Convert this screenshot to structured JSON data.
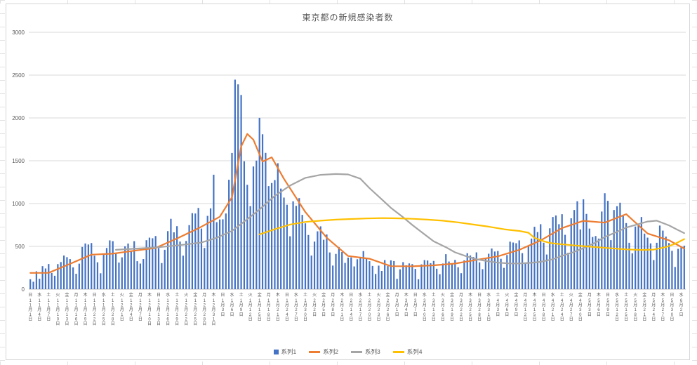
{
  "title": "東京都の新規感染者数",
  "colors": {
    "series1": "#4472C4",
    "series2": "#ED7D31",
    "series3": "#A5A5A5",
    "series4": "#FFC000",
    "grid": "#D9D9D9",
    "axis": "#BFBFBF",
    "text": "#595959"
  },
  "legend": [
    {
      "label": "系列1",
      "type": "bar"
    },
    {
      "label": "系列2",
      "type": "line"
    },
    {
      "label": "系列3",
      "type": "line"
    },
    {
      "label": "系列4",
      "type": "line"
    }
  ],
  "chart_data": {
    "type": "bar",
    "subtype": "combo bar + 3 lines",
    "title": "東京都の新規感染者数",
    "ylim": [
      0,
      3000
    ],
    "y_step": 500,
    "x_start": "11月1日",
    "x_end": "6月3日",
    "x_tick_every_days": 3,
    "x_tick_labels": [
      {
        "w": "日",
        "t": "11月1日"
      },
      {
        "w": "水",
        "t": "11月4日"
      },
      {
        "w": "土",
        "t": "11月7日"
      },
      {
        "w": "火",
        "t": "11月10日"
      },
      {
        "w": "金",
        "t": "11月13日"
      },
      {
        "w": "月",
        "t": "11月16日"
      },
      {
        "w": "木",
        "t": "11月19日"
      },
      {
        "w": "日",
        "t": "11月22日"
      },
      {
        "w": "水",
        "t": "11月25日"
      },
      {
        "w": "土",
        "t": "11月28日"
      },
      {
        "w": "火",
        "t": "12月1日"
      },
      {
        "w": "金",
        "t": "12月4日"
      },
      {
        "w": "月",
        "t": "12月7日"
      },
      {
        "w": "木",
        "t": "12月10日"
      },
      {
        "w": "日",
        "t": "12月13日"
      },
      {
        "w": "水",
        "t": "12月16日"
      },
      {
        "w": "土",
        "t": "12月19日"
      },
      {
        "w": "火",
        "t": "12月22日"
      },
      {
        "w": "金",
        "t": "12月25日"
      },
      {
        "w": "月",
        "t": "12月28日"
      },
      {
        "w": "木",
        "t": "12月31日"
      },
      {
        "w": "日",
        "t": "1月3日"
      },
      {
        "w": "水",
        "t": "1月6日"
      },
      {
        "w": "土",
        "t": "1月9日"
      },
      {
        "w": "火",
        "t": "1月12日"
      },
      {
        "w": "金",
        "t": "1月15日"
      },
      {
        "w": "月",
        "t": "1月18日"
      },
      {
        "w": "木",
        "t": "1月21日"
      },
      {
        "w": "日",
        "t": "1月24日"
      },
      {
        "w": "水",
        "t": "1月27日"
      },
      {
        "w": "土",
        "t": "1月30日"
      },
      {
        "w": "火",
        "t": "2月2日"
      },
      {
        "w": "金",
        "t": "2月5日"
      },
      {
        "w": "月",
        "t": "2月8日"
      },
      {
        "w": "木",
        "t": "2月11日"
      },
      {
        "w": "日",
        "t": "2月14日"
      },
      {
        "w": "水",
        "t": "2月17日"
      },
      {
        "w": "土",
        "t": "2月20日"
      },
      {
        "w": "火",
        "t": "2月23日"
      },
      {
        "w": "金",
        "t": "2月26日"
      },
      {
        "w": "月",
        "t": "3月1日"
      },
      {
        "w": "木",
        "t": "3月4日"
      },
      {
        "w": "日",
        "t": "3月7日"
      },
      {
        "w": "水",
        "t": "3月10日"
      },
      {
        "w": "土",
        "t": "3月13日"
      },
      {
        "w": "火",
        "t": "3月16日"
      },
      {
        "w": "金",
        "t": "3月19日"
      },
      {
        "w": "月",
        "t": "3月22日"
      },
      {
        "w": "木",
        "t": "3月25日"
      },
      {
        "w": "日",
        "t": "3月28日"
      },
      {
        "w": "水",
        "t": "3月31日"
      },
      {
        "w": "土",
        "t": "4月3日"
      },
      {
        "w": "火",
        "t": "4月6日"
      },
      {
        "w": "金",
        "t": "4月9日"
      },
      {
        "w": "月",
        "t": "4月12日"
      },
      {
        "w": "木",
        "t": "4月15日"
      },
      {
        "w": "日",
        "t": "4月18日"
      },
      {
        "w": "水",
        "t": "4月21日"
      },
      {
        "w": "土",
        "t": "4月24日"
      },
      {
        "w": "火",
        "t": "4月27日"
      },
      {
        "w": "金",
        "t": "4月30日"
      },
      {
        "w": "月",
        "t": "5月3日"
      },
      {
        "w": "木",
        "t": "5月6日"
      },
      {
        "w": "日",
        "t": "5月9日"
      },
      {
        "w": "水",
        "t": "5月12日"
      },
      {
        "w": "土",
        "t": "5月15日"
      },
      {
        "w": "火",
        "t": "5月18日"
      },
      {
        "w": "金",
        "t": "5月21日"
      },
      {
        "w": "月",
        "t": "5月24日"
      },
      {
        "w": "木",
        "t": "5月27日"
      },
      {
        "w": "日",
        "t": "5月30日"
      },
      {
        "w": "水",
        "t": "6月2日"
      }
    ],
    "series": [
      {
        "name": "系列1",
        "type": "bar",
        "color": "#4472C4",
        "values": [
          116,
          87,
          209,
          122,
          269,
          242,
          294,
          189,
          157,
          293,
          317,
          393,
          374,
          352,
          255,
          180,
          298,
          493,
          534,
          522,
          539,
          391,
          314,
          186,
          401,
          481,
          570,
          561,
          418,
          311,
          372,
          500,
          533,
          449,
          561,
          327,
          299,
          352,
          572,
          602,
          595,
          621,
          480,
          305,
          460,
          678,
          822,
          664,
          736,
          556,
          392,
          563,
          748,
          888,
          884,
          949,
          708,
          481,
          856,
          944,
          1337,
          783,
          814,
          816,
          884,
          1278,
          1591,
          2447,
          2392,
          2268,
          1494,
          1219,
          970,
          1433,
          1502,
          2001,
          1809,
          1592,
          1204,
          1240,
          1274,
          1471,
          1175,
          1070,
          986,
          618,
          1026,
          973,
          1064,
          868,
          769,
          633,
          393,
          556,
          676,
          734,
          577,
          639,
          429,
          276,
          412,
          491,
          434,
          307,
          369,
          371,
          266,
          350,
          378,
          445,
          353,
          327,
          272,
          178,
          275,
          213,
          340,
          270,
          337,
          329,
          121,
          232,
          316,
          279,
          301,
          293,
          237,
          116,
          290,
          340,
          335,
          304,
          330,
          239,
          175,
          300,
          409,
          323,
          303,
          342,
          256,
          187,
          337,
          420,
          394,
          376,
          430,
          313,
          234,
          364,
          414,
          475,
          440,
          446,
          355,
          249,
          399,
          555,
          545,
          537,
          570,
          421,
          306,
          510,
          591,
          729,
          667,
          759,
          543,
          405,
          711,
          843,
          861,
          759,
          876,
          635,
          425,
          828,
          925,
          1027,
          698,
          1050,
          879,
          708,
          609,
          621,
          591,
          907,
          1121,
          1032,
          573,
          925,
          969,
          1010,
          854,
          772,
          542,
          419,
          732,
          766,
          843,
          649,
          602,
          535,
          340,
          542,
          743,
          684,
          614,
          539,
          448,
          260,
          471,
          487,
          508
        ]
      },
      {
        "name": "系列2",
        "type": "line",
        "color": "#ED7D31",
        "points": [
          [
            0,
            190
          ],
          [
            6,
            191
          ],
          [
            13,
            296
          ],
          [
            20,
            403
          ],
          [
            27,
            415
          ],
          [
            34,
            449
          ],
          [
            41,
            481
          ],
          [
            48,
            592
          ],
          [
            55,
            711
          ],
          [
            62,
            846
          ],
          [
            66,
            1072
          ],
          [
            69,
            1668
          ],
          [
            71,
            1813
          ],
          [
            73,
            1746
          ],
          [
            76,
            1490
          ],
          [
            79,
            1540
          ],
          [
            83,
            1289
          ],
          [
            90,
            901
          ],
          [
            97,
            601
          ],
          [
            104,
            388
          ],
          [
            111,
            356
          ],
          [
            118,
            269
          ],
          [
            125,
            267
          ],
          [
            132,
            279
          ],
          [
            139,
            299
          ],
          [
            146,
            343
          ],
          [
            153,
            384
          ],
          [
            160,
            459
          ],
          [
            167,
            569
          ],
          [
            174,
            714
          ],
          [
            181,
            798
          ],
          [
            188,
            777
          ],
          [
            195,
            876
          ],
          [
            202,
            650
          ],
          [
            209,
            571
          ],
          [
            214,
            475
          ]
        ]
      },
      {
        "name": "系列3",
        "type": "line",
        "color": "#A5A5A5",
        "points": [
          [
            28,
            460
          ],
          [
            35,
            475
          ],
          [
            42,
            490
          ],
          [
            49,
            515
          ],
          [
            56,
            545
          ],
          [
            61,
            600
          ],
          [
            66,
            680
          ],
          [
            70,
            790
          ],
          [
            75,
            930
          ],
          [
            80,
            1090
          ],
          [
            85,
            1210
          ],
          [
            90,
            1300
          ],
          [
            95,
            1335
          ],
          [
            100,
            1345
          ],
          [
            104,
            1340
          ],
          [
            108,
            1290
          ],
          [
            111,
            1180
          ],
          [
            115,
            1050
          ],
          [
            118,
            950
          ],
          [
            122,
            840
          ],
          [
            125,
            750
          ],
          [
            129,
            640
          ],
          [
            132,
            560
          ],
          [
            136,
            490
          ],
          [
            139,
            430
          ],
          [
            143,
            380
          ],
          [
            146,
            350
          ],
          [
            150,
            325
          ],
          [
            153,
            310
          ],
          [
            157,
            300
          ],
          [
            160,
            300
          ],
          [
            164,
            308
          ],
          [
            167,
            320
          ],
          [
            171,
            350
          ],
          [
            174,
            390
          ],
          [
            178,
            435
          ],
          [
            181,
            480
          ],
          [
            185,
            545
          ],
          [
            188,
            610
          ],
          [
            192,
            670
          ],
          [
            195,
            720
          ],
          [
            199,
            760
          ],
          [
            202,
            790
          ],
          [
            205,
            800
          ],
          [
            209,
            745
          ],
          [
            212,
            690
          ],
          [
            214,
            655
          ]
        ]
      },
      {
        "name": "系列4",
        "type": "line",
        "color": "#FFC000",
        "points": [
          [
            75,
            640
          ],
          [
            80,
            700
          ],
          [
            85,
            755
          ],
          [
            90,
            785
          ],
          [
            95,
            800
          ],
          [
            100,
            812
          ],
          [
            105,
            820
          ],
          [
            110,
            826
          ],
          [
            115,
            830
          ],
          [
            120,
            828
          ],
          [
            125,
            822
          ],
          [
            130,
            812
          ],
          [
            135,
            800
          ],
          [
            140,
            780
          ],
          [
            145,
            755
          ],
          [
            150,
            730
          ],
          [
            155,
            700
          ],
          [
            158,
            688
          ],
          [
            160,
            680
          ],
          [
            163,
            660
          ],
          [
            165,
            600
          ],
          [
            168,
            560
          ],
          [
            170,
            540
          ],
          [
            173,
            528
          ],
          [
            176,
            518
          ],
          [
            180,
            505
          ],
          [
            185,
            492
          ],
          [
            190,
            478
          ],
          [
            195,
            465
          ],
          [
            200,
            458
          ],
          [
            204,
            462
          ],
          [
            208,
            492
          ],
          [
            211,
            530
          ],
          [
            214,
            585
          ]
        ]
      }
    ]
  }
}
